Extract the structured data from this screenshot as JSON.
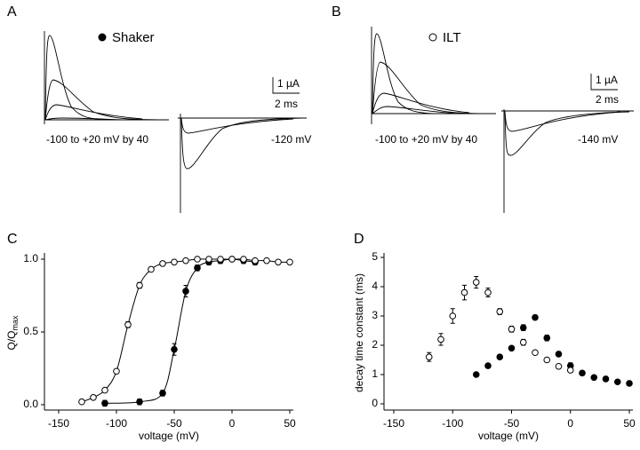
{
  "chart_data": [
    {
      "type": "trace",
      "panel": "A",
      "legend": "Shaker",
      "marker": "filled",
      "scale_y": "1 µA",
      "scale_x": "2 ms",
      "annotations": [
        "-100 to +20 mV by 40",
        "-120 mV"
      ]
    },
    {
      "type": "trace",
      "panel": "B",
      "legend": "ILT",
      "marker": "open",
      "scale_y": "1 µA",
      "scale_x": "2 ms",
      "annotations": [
        "-100 to +20 mV by 40",
        "-140 mV"
      ]
    },
    {
      "type": "scatter",
      "panel": "C",
      "xlabel": "voltage (mV)",
      "ylabel": "Q/Q",
      "ylabel_sub": "max",
      "fit": true,
      "xlim": [
        -150,
        50
      ],
      "xticks": [
        -150,
        -100,
        -50,
        0,
        50
      ],
      "ylim": [
        0,
        1
      ],
      "yticks": [
        {
          "value": 0,
          "label": "0.0"
        },
        {
          "value": 0.5,
          "label": "0.5"
        },
        {
          "value": 1,
          "label": "1.0"
        }
      ],
      "series": [
        {
          "marker": "filled",
          "color": "#000000",
          "x": [
            -110,
            -80,
            -60,
            -50,
            -40,
            -30,
            -20,
            -10,
            0,
            10,
            20
          ],
          "values": [
            0.01,
            0.02,
            0.08,
            0.38,
            0.78,
            0.94,
            0.98,
            0.99,
            1.0,
            0.99,
            0.98
          ],
          "errors": [
            0.02,
            0.02,
            0.02,
            0.04,
            0.04,
            0.02,
            0.02,
            0.02,
            0.01,
            0.02,
            0.02
          ]
        },
        {
          "marker": "open",
          "color": "#000000",
          "x": [
            -130,
            -120,
            -110,
            -100,
            -90,
            -80,
            -70,
            -60,
            -50,
            -40,
            -30,
            -20,
            -10,
            0,
            10,
            20,
            30,
            40,
            50
          ],
          "values": [
            0.02,
            0.05,
            0.1,
            0.23,
            0.55,
            0.82,
            0.93,
            0.97,
            0.98,
            0.99,
            1.0,
            1.0,
            1.0,
            1.0,
            1.0,
            0.99,
            0.99,
            0.98,
            0.98
          ],
          "errors": [
            0.01,
            0.01,
            0.01,
            0.01,
            0.02,
            0.02,
            0.01,
            0.01,
            0.01,
            0.01,
            0.01,
            0.01,
            0.01,
            0.01,
            0.01,
            0.01,
            0.01,
            0.01,
            0.01
          ]
        }
      ]
    },
    {
      "type": "scatter",
      "panel": "D",
      "xlabel": "voltage (mV)",
      "ylabel": "decay time constant (ms)",
      "fit": false,
      "xlim": [
        -150,
        50
      ],
      "xticks": [
        -150,
        -100,
        -50,
        0,
        50
      ],
      "ylim": [
        0,
        5
      ],
      "yticks": [
        0,
        1,
        2,
        3,
        4,
        5
      ],
      "series": [
        {
          "marker": "filled",
          "color": "#000000",
          "x": [
            -80,
            -70,
            -60,
            -50,
            -40,
            -30,
            -20,
            -10,
            0,
            10,
            20,
            30,
            40,
            50
          ],
          "values": [
            1.0,
            1.3,
            1.6,
            1.9,
            2.6,
            2.95,
            2.25,
            1.7,
            1.3,
            1.05,
            0.9,
            0.85,
            0.75,
            0.7
          ],
          "errors": [
            0.05,
            0.05,
            0.06,
            0.06,
            0.1,
            0.08,
            0.1,
            0.08,
            0.1,
            0.08,
            0.06,
            0.08,
            0.06,
            0.06
          ]
        },
        {
          "marker": "open",
          "color": "#000000",
          "x": [
            -120,
            -110,
            -100,
            -90,
            -80,
            -70,
            -60,
            -50,
            -40,
            -30,
            -20,
            -10,
            0
          ],
          "values": [
            1.6,
            2.2,
            3.0,
            3.8,
            4.15,
            3.8,
            3.15,
            2.55,
            2.1,
            1.75,
            1.5,
            1.28,
            1.15
          ],
          "errors": [
            0.15,
            0.2,
            0.25,
            0.25,
            0.2,
            0.15,
            0.1,
            0.1,
            0.1,
            0.05,
            0.05,
            0.05,
            0.05
          ]
        }
      ]
    }
  ]
}
